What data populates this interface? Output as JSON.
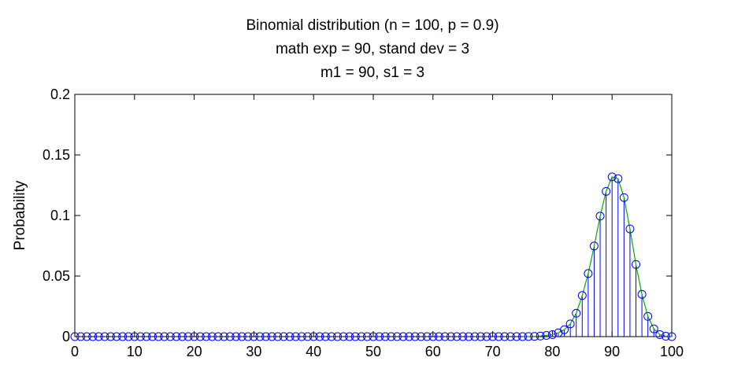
{
  "chart_data": {
    "type": "stem",
    "title_lines": [
      "Binomial distribution (n = 100, p = 0.9)",
      "math exp = 90, stand dev = 3",
      "m1 = 90, s1 = 3"
    ],
    "xlabel": "",
    "ylabel": "Probability",
    "xlim": [
      0,
      100
    ],
    "ylim": [
      0,
      0.2
    ],
    "xticks": [
      0,
      10,
      20,
      30,
      40,
      50,
      60,
      70,
      80,
      90,
      100
    ],
    "yticks": [
      0,
      0.05,
      0.1,
      0.15,
      0.2
    ],
    "ytick_labels": [
      "0",
      "0.05",
      "0.1",
      "0.15",
      "0.2"
    ],
    "grid": false,
    "colors": {
      "stem": "#0000ff",
      "marker": "#0000ff",
      "curve": "#00b000",
      "axes": "#000000"
    },
    "series": [
      {
        "x": [
          0,
          1,
          2,
          3,
          4,
          5,
          6,
          7,
          8,
          9,
          10,
          11,
          12,
          13,
          14,
          15,
          16,
          17,
          18,
          19,
          20,
          21,
          22,
          23,
          24,
          25,
          26,
          27,
          28,
          29,
          30,
          31,
          32,
          33,
          34,
          35,
          36,
          37,
          38,
          39,
          40,
          41,
          42,
          43,
          44,
          45,
          46,
          47,
          48,
          49,
          50,
          51,
          52,
          53,
          54,
          55,
          56,
          57,
          58,
          59,
          60,
          61,
          62,
          63,
          64,
          65,
          66,
          67,
          68,
          69,
          70,
          71,
          72,
          73,
          74,
          75,
          76,
          77,
          78,
          79,
          80,
          81,
          82,
          83,
          84,
          85,
          86,
          87,
          88,
          89,
          90,
          91,
          92,
          93,
          94,
          95,
          96,
          97,
          98,
          99,
          100
        ],
        "values": [
          0,
          0,
          0,
          0,
          0,
          0,
          0,
          0,
          0,
          0,
          0,
          0,
          0,
          0,
          0,
          0,
          0,
          0,
          0,
          0,
          0,
          0,
          0,
          0,
          0,
          0,
          0,
          0,
          0,
          0,
          0,
          0,
          0,
          0,
          0,
          0,
          0,
          0,
          0,
          0,
          0,
          0,
          0,
          0,
          0,
          0,
          0,
          0,
          0,
          0,
          0,
          0,
          0,
          0,
          0,
          0,
          0,
          0,
          0,
          0,
          0,
          0,
          0,
          0,
          0,
          0,
          0,
          0,
          0,
          0,
          0,
          0,
          0,
          0,
          0,
          0,
          0.0001,
          0.0002,
          0.0005,
          0.001,
          0.0016,
          0.0031,
          0.0057,
          0.0105,
          0.0193,
          0.0339,
          0.0521,
          0.0748,
          0.0995,
          0.1199,
          0.1319,
          0.1304,
          0.1148,
          0.0889,
          0.0596,
          0.0349,
          0.0167,
          0.0064,
          0.0016,
          0.0003,
          0.0
        ]
      }
    ]
  }
}
